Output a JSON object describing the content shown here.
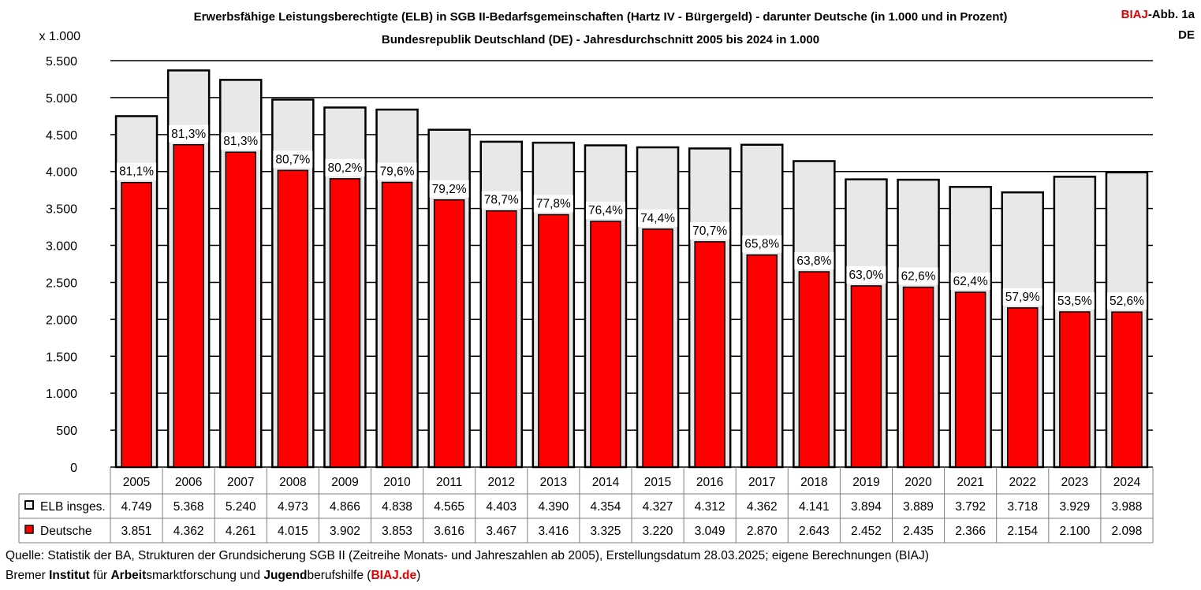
{
  "header": {
    "title_line1": "Erwerbsfähige Leistungsberechtigte (ELB) in SGB II-Bedarfsgemeinschaften (Hartz IV - Bürgergeld) - darunter Deutsche (in 1.000 und in Prozent)",
    "title_line2": "Bundesrepublik Deutschland (DE) - Jahresdurchschnitt 2005 bis 2024 in 1.000",
    "badge_brand": "BIAJ",
    "badge_suffix": "-Abb. 1a",
    "badge_region": "DE"
  },
  "footer": {
    "source": "Quelle: Statistik der BA, Strukturen der Grundsicherung SGB II (Zeitreihe Monats- und Jahreszahlen ab 2005), Erstellungsdatum 28.03.2025; eigene Berechnungen (BIAJ)",
    "org_parts": [
      {
        "text": "Bremer ",
        "bold": false
      },
      {
        "text": "Institut",
        "bold": true
      },
      {
        "text": " für ",
        "bold": false
      },
      {
        "text": "Arbeit",
        "bold": true
      },
      {
        "text": "smarktforschung und ",
        "bold": false
      },
      {
        "text": "Jugend",
        "bold": true
      },
      {
        "text": "berufshilfe (",
        "bold": false
      }
    ],
    "org_link": "BIAJ.de",
    "org_close": ")"
  },
  "colors": {
    "elb_fill": "#e8e8e8",
    "deutsche_fill": "#ff0000",
    "grid": "#000000",
    "brand_red": "#e00000"
  },
  "chart_data": {
    "type": "bar",
    "unit_label": "x 1.000",
    "ylim": [
      0,
      5500
    ],
    "yticks": [
      0,
      500,
      1000,
      1500,
      2000,
      2500,
      3000,
      3500,
      4000,
      4500,
      5000,
      5500
    ],
    "ytick_labels": [
      "0",
      "500",
      "1.000",
      "1.500",
      "2.000",
      "2.500",
      "3.000",
      "3.500",
      "4.000",
      "4.500",
      "5.000",
      "5.500"
    ],
    "grid": true,
    "categories": [
      "2005",
      "2006",
      "2007",
      "2008",
      "2009",
      "2010",
      "2011",
      "2012",
      "2013",
      "2014",
      "2015",
      "2016",
      "2017",
      "2018",
      "2019",
      "2020",
      "2021",
      "2022",
      "2023",
      "2024"
    ],
    "series": [
      {
        "name": "ELB insges.",
        "values": [
          4749,
          5368,
          5240,
          4973,
          4866,
          4838,
          4565,
          4403,
          4390,
          4354,
          4327,
          4312,
          4362,
          4141,
          3894,
          3889,
          3792,
          3718,
          3929,
          3988
        ],
        "value_labels": [
          "4.749",
          "5.368",
          "5.240",
          "4.973",
          "4.866",
          "4.838",
          "4.565",
          "4.403",
          "4.390",
          "4.354",
          "4.327",
          "4.312",
          "4.362",
          "4.141",
          "3.894",
          "3.889",
          "3.792",
          "3.718",
          "3.929",
          "3.988"
        ]
      },
      {
        "name": "Deutsche",
        "values": [
          3851,
          4362,
          4261,
          4015,
          3902,
          3853,
          3616,
          3467,
          3416,
          3325,
          3220,
          3049,
          2870,
          2643,
          2452,
          2435,
          2366,
          2154,
          2100,
          2098
        ],
        "value_labels": [
          "3.851",
          "4.362",
          "4.261",
          "4.015",
          "3.902",
          "3.853",
          "3.616",
          "3.467",
          "3.416",
          "3.325",
          "3.220",
          "3.049",
          "2.870",
          "2.643",
          "2.452",
          "2.435",
          "2.366",
          "2.154",
          "2.100",
          "2.098"
        ]
      }
    ],
    "percent_labels": [
      "81,1%",
      "81,3%",
      "81,3%",
      "80,7%",
      "80,2%",
      "79,6%",
      "79,2%",
      "78,7%",
      "77,8%",
      "76,4%",
      "74,4%",
      "70,7%",
      "65,8%",
      "63,8%",
      "63,0%",
      "62,6%",
      "62,4%",
      "57,9%",
      "53,5%",
      "52,6%"
    ],
    "legend": "data-table below plot"
  }
}
